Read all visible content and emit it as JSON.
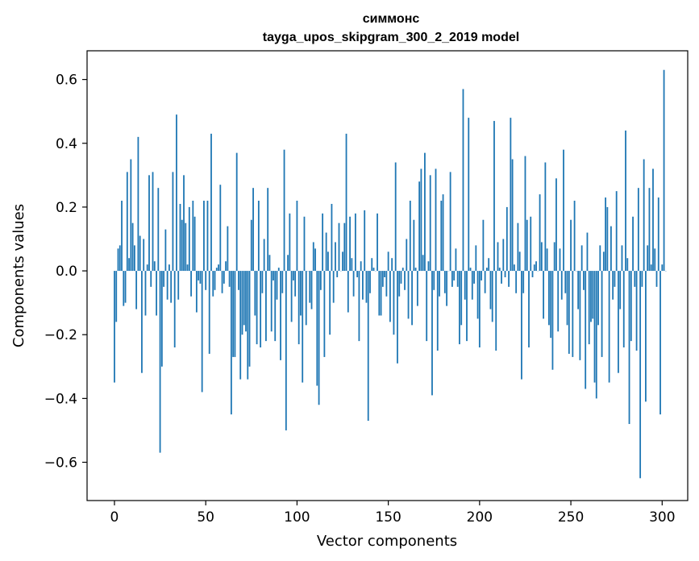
{
  "chart_data": {
    "type": "bar",
    "title": "симмонс",
    "subtitle": "tayga_upos_skipgram_300_2_2019 model",
    "xlabel": "Vector components",
    "ylabel": "Components values",
    "xlim": [
      -15,
      314
    ],
    "ylim": [
      -0.72,
      0.69
    ],
    "xticks": [
      0,
      50,
      100,
      150,
      200,
      250,
      300
    ],
    "xtick_labels": [
      "0",
      "50",
      "100",
      "150",
      "200",
      "250",
      "300"
    ],
    "yticks": [
      -0.6,
      -0.4,
      -0.2,
      0.0,
      0.2,
      0.4,
      0.6
    ],
    "ytick_labels": [
      "−0.6",
      "−0.4",
      "−0.2",
      "0.0",
      "0.2",
      "0.4",
      "0.6"
    ],
    "bar_color": "#1f77b4",
    "grid": false,
    "values": [
      -0.35,
      -0.16,
      0.07,
      0.08,
      0.22,
      -0.11,
      -0.1,
      0.31,
      0.04,
      0.35,
      0.15,
      0.08,
      -0.12,
      0.42,
      0.11,
      -0.32,
      0.1,
      -0.14,
      0.02,
      0.3,
      -0.05,
      0.31,
      0.03,
      -0.14,
      0.26,
      -0.57,
      -0.3,
      -0.05,
      0.13,
      -0.09,
      0.02,
      -0.1,
      0.31,
      -0.24,
      0.49,
      -0.09,
      0.21,
      0.16,
      0.3,
      0.15,
      0.02,
      0.2,
      -0.08,
      0.22,
      0.17,
      -0.13,
      -0.03,
      -0.04,
      -0.38,
      0.22,
      -0.06,
      0.22,
      -0.26,
      0.43,
      -0.08,
      -0.06,
      0.01,
      0.02,
      0.27,
      -0.07,
      -0.04,
      0.03,
      0.14,
      -0.05,
      -0.45,
      -0.27,
      -0.27,
      0.37,
      -0.06,
      -0.34,
      -0.2,
      -0.17,
      -0.19,
      -0.34,
      -0.3,
      0.16,
      0.26,
      -0.14,
      -0.23,
      0.22,
      -0.24,
      -0.07,
      0.1,
      -0.22,
      0.26,
      0.05,
      -0.19,
      -0.03,
      -0.22,
      -0.09,
      0.01,
      -0.28,
      -0.07,
      0.38,
      -0.5,
      0.05,
      0.18,
      -0.16,
      -0.03,
      -0.08,
      0.22,
      -0.23,
      -0.14,
      -0.35,
      0.17,
      -0.17,
      0.0,
      -0.1,
      -0.12,
      0.09,
      0.07,
      -0.36,
      -0.42,
      -0.06,
      0.18,
      -0.27,
      0.12,
      0.06,
      -0.2,
      0.21,
      -0.1,
      0.09,
      -0.02,
      0.15,
      0.0,
      0.06,
      0.15,
      0.43,
      -0.13,
      0.17,
      0.04,
      -0.08,
      0.18,
      -0.02,
      -0.22,
      0.03,
      -0.09,
      0.19,
      -0.1,
      -0.47,
      -0.07,
      0.04,
      0.01,
      0.0,
      0.18,
      -0.14,
      -0.14,
      -0.05,
      -0.02,
      -0.08,
      0.06,
      -0.16,
      0.04,
      -0.2,
      0.34,
      -0.29,
      -0.08,
      -0.04,
      0.01,
      -0.06,
      0.1,
      -0.15,
      0.22,
      -0.17,
      0.16,
      0.01,
      -0.11,
      0.28,
      0.32,
      0.05,
      0.37,
      -0.22,
      0.03,
      0.3,
      -0.39,
      -0.06,
      0.32,
      -0.25,
      -0.08,
      0.22,
      0.24,
      -0.07,
      -0.11,
      0.0,
      0.31,
      -0.05,
      -0.03,
      0.07,
      -0.05,
      -0.23,
      -0.17,
      0.57,
      -0.09,
      -0.22,
      0.48,
      0.01,
      -0.09,
      -0.04,
      0.08,
      -0.15,
      -0.24,
      -0.03,
      0.16,
      -0.07,
      0.01,
      0.04,
      -0.12,
      -0.16,
      0.47,
      -0.25,
      0.09,
      0.01,
      -0.04,
      0.1,
      -0.02,
      0.2,
      -0.05,
      0.48,
      0.35,
      0.02,
      -0.07,
      0.15,
      0.06,
      -0.34,
      -0.07,
      0.36,
      0.16,
      -0.24,
      0.17,
      -0.02,
      0.02,
      0.03,
      0.0,
      0.24,
      0.09,
      -0.15,
      0.34,
      0.07,
      -0.17,
      -0.21,
      -0.31,
      0.09,
      0.29,
      -0.19,
      0.07,
      -0.09,
      0.38,
      -0.07,
      -0.17,
      -0.26,
      0.16,
      -0.27,
      0.22,
      0.0,
      -0.12,
      -0.28,
      0.08,
      -0.06,
      -0.37,
      0.12,
      -0.23,
      -0.16,
      -0.15,
      -0.35,
      -0.4,
      -0.17,
      0.08,
      -0.27,
      0.06,
      0.23,
      0.2,
      -0.35,
      0.14,
      -0.09,
      -0.05,
      0.25,
      -0.32,
      -0.12,
      0.08,
      -0.24,
      0.44,
      0.04,
      -0.48,
      -0.22,
      0.17,
      -0.05,
      -0.25,
      0.26,
      -0.65,
      -0.05,
      0.35,
      -0.41,
      0.08,
      0.26,
      0.02,
      0.32,
      0.07,
      -0.05,
      0.23,
      -0.45,
      0.02,
      0.63,
      0.0
    ]
  }
}
